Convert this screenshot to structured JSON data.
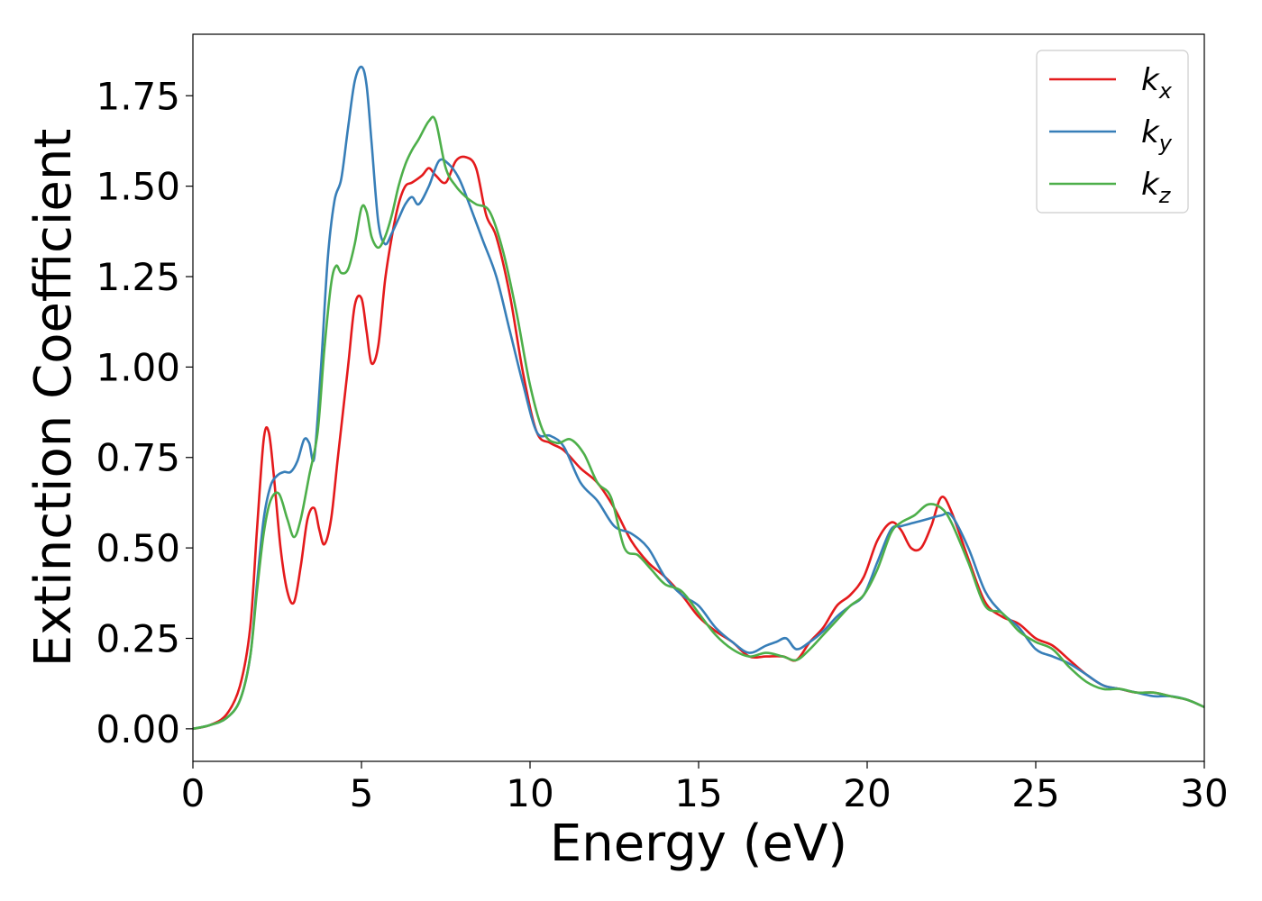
{
  "chart_data": {
    "type": "line",
    "xlabel": "Energy (eV)",
    "ylabel": "Extinction Coefficient",
    "xlim": [
      0,
      30
    ],
    "ylim": [
      -0.09,
      1.92
    ],
    "xticks": [
      0,
      5,
      10,
      15,
      20,
      25,
      30
    ],
    "xtick_labels": [
      "0",
      "5",
      "10",
      "15",
      "20",
      "25",
      "30"
    ],
    "yticks": [
      0.0,
      0.25,
      0.5,
      0.75,
      1.0,
      1.25,
      1.5,
      1.75
    ],
    "ytick_labels": [
      "0.00",
      "0.25",
      "0.50",
      "0.75",
      "1.00",
      "1.25",
      "1.50",
      "1.75"
    ],
    "grid": false,
    "legend_position": "top-right",
    "series": [
      {
        "name": "k_x",
        "label_main": "k",
        "label_sub": "x",
        "color": "#e41a1c",
        "x": [
          0,
          0.5,
          1.0,
          1.4,
          1.7,
          1.9,
          2.1,
          2.25,
          2.4,
          2.6,
          2.8,
          3.0,
          3.2,
          3.4,
          3.6,
          3.75,
          3.9,
          4.1,
          4.3,
          4.6,
          4.8,
          5.0,
          5.15,
          5.3,
          5.5,
          5.7,
          5.9,
          6.1,
          6.3,
          6.5,
          6.8,
          7.0,
          7.2,
          7.5,
          7.8,
          8.1,
          8.4,
          8.7,
          9.0,
          9.4,
          9.8,
          10.2,
          10.6,
          11.0,
          11.5,
          12.0,
          12.5,
          13.0,
          13.5,
          14.0,
          14.5,
          15.0,
          15.5,
          16.0,
          16.5,
          17.0,
          17.5,
          17.9,
          18.3,
          18.7,
          19.1,
          19.5,
          19.9,
          20.3,
          20.7,
          21.0,
          21.3,
          21.6,
          21.9,
          22.2,
          22.5,
          23.0,
          23.5,
          24.0,
          24.5,
          25.0,
          25.5,
          26.0,
          26.5,
          27.0,
          27.5,
          28.0,
          28.5,
          29.0,
          29.5,
          30.0
        ],
        "y": [
          0.0,
          0.01,
          0.04,
          0.12,
          0.28,
          0.55,
          0.8,
          0.82,
          0.7,
          0.5,
          0.38,
          0.35,
          0.45,
          0.58,
          0.61,
          0.55,
          0.51,
          0.58,
          0.75,
          1.0,
          1.17,
          1.19,
          1.1,
          1.01,
          1.06,
          1.24,
          1.36,
          1.45,
          1.5,
          1.51,
          1.53,
          1.55,
          1.53,
          1.51,
          1.57,
          1.58,
          1.55,
          1.42,
          1.36,
          1.2,
          0.98,
          0.82,
          0.79,
          0.77,
          0.72,
          0.68,
          0.61,
          0.52,
          0.46,
          0.42,
          0.37,
          0.31,
          0.27,
          0.24,
          0.2,
          0.2,
          0.2,
          0.19,
          0.24,
          0.28,
          0.34,
          0.37,
          0.42,
          0.52,
          0.57,
          0.55,
          0.5,
          0.5,
          0.56,
          0.64,
          0.6,
          0.47,
          0.35,
          0.31,
          0.29,
          0.25,
          0.23,
          0.19,
          0.15,
          0.12,
          0.11,
          0.1,
          0.1,
          0.09,
          0.08,
          0.06
        ]
      },
      {
        "name": "k_y",
        "label_main": "k",
        "label_sub": "y",
        "color": "#377eb8",
        "x": [
          0,
          0.5,
          1.0,
          1.4,
          1.7,
          1.9,
          2.1,
          2.3,
          2.5,
          2.7,
          2.9,
          3.1,
          3.3,
          3.45,
          3.6,
          3.8,
          4.0,
          4.2,
          4.4,
          4.6,
          4.8,
          5.0,
          5.15,
          5.3,
          5.5,
          5.7,
          5.9,
          6.1,
          6.3,
          6.5,
          6.7,
          7.0,
          7.3,
          7.6,
          7.9,
          8.2,
          8.6,
          9.0,
          9.4,
          9.8,
          10.2,
          10.6,
          11.0,
          11.5,
          12.0,
          12.5,
          13.0,
          13.5,
          14.0,
          14.5,
          15.0,
          15.5,
          16.0,
          16.5,
          17.0,
          17.3,
          17.6,
          17.9,
          18.3,
          18.7,
          19.1,
          19.5,
          19.9,
          20.3,
          20.7,
          21.0,
          21.4,
          21.8,
          22.2,
          22.5,
          23.0,
          23.5,
          24.0,
          24.5,
          25.0,
          25.5,
          26.0,
          26.5,
          27.0,
          27.5,
          28.0,
          28.5,
          29.0,
          29.5,
          30.0
        ],
        "y": [
          0.0,
          0.01,
          0.03,
          0.08,
          0.2,
          0.4,
          0.58,
          0.67,
          0.7,
          0.71,
          0.71,
          0.74,
          0.8,
          0.79,
          0.75,
          1.0,
          1.3,
          1.46,
          1.52,
          1.66,
          1.79,
          1.83,
          1.78,
          1.62,
          1.4,
          1.34,
          1.37,
          1.41,
          1.45,
          1.47,
          1.45,
          1.5,
          1.57,
          1.56,
          1.52,
          1.45,
          1.35,
          1.25,
          1.1,
          0.95,
          0.82,
          0.81,
          0.78,
          0.68,
          0.63,
          0.56,
          0.54,
          0.5,
          0.42,
          0.37,
          0.34,
          0.28,
          0.24,
          0.21,
          0.23,
          0.24,
          0.25,
          0.22,
          0.24,
          0.27,
          0.31,
          0.34,
          0.37,
          0.46,
          0.55,
          0.56,
          0.57,
          0.58,
          0.59,
          0.59,
          0.5,
          0.38,
          0.32,
          0.28,
          0.22,
          0.2,
          0.18,
          0.15,
          0.12,
          0.11,
          0.1,
          0.09,
          0.09,
          0.08,
          0.06
        ]
      },
      {
        "name": "k_z",
        "label_main": "k",
        "label_sub": "z",
        "color": "#4daf4a",
        "x": [
          0,
          0.5,
          1.0,
          1.4,
          1.7,
          1.9,
          2.1,
          2.3,
          2.55,
          2.8,
          3.0,
          3.2,
          3.45,
          3.7,
          3.9,
          4.1,
          4.25,
          4.4,
          4.6,
          4.8,
          5.0,
          5.15,
          5.3,
          5.5,
          5.7,
          5.9,
          6.1,
          6.3,
          6.5,
          6.7,
          7.0,
          7.2,
          7.5,
          7.8,
          8.1,
          8.4,
          8.8,
          9.2,
          9.6,
          10.0,
          10.4,
          10.8,
          11.2,
          11.6,
          12.0,
          12.4,
          12.8,
          13.2,
          13.6,
          14.0,
          14.5,
          15.0,
          15.5,
          16.0,
          16.5,
          17.0,
          17.5,
          17.9,
          18.3,
          18.7,
          19.1,
          19.5,
          19.9,
          20.3,
          20.7,
          21.0,
          21.4,
          21.8,
          22.2,
          22.5,
          23.0,
          23.5,
          24.0,
          24.5,
          25.0,
          25.5,
          26.0,
          26.5,
          27.0,
          27.5,
          28.0,
          28.5,
          29.0,
          29.5,
          30.0
        ],
        "y": [
          0.0,
          0.01,
          0.03,
          0.08,
          0.2,
          0.38,
          0.54,
          0.63,
          0.65,
          0.58,
          0.53,
          0.58,
          0.7,
          0.82,
          1.05,
          1.23,
          1.28,
          1.26,
          1.27,
          1.34,
          1.44,
          1.43,
          1.36,
          1.33,
          1.36,
          1.42,
          1.5,
          1.56,
          1.6,
          1.63,
          1.68,
          1.68,
          1.55,
          1.5,
          1.47,
          1.45,
          1.43,
          1.32,
          1.15,
          0.95,
          0.82,
          0.79,
          0.8,
          0.76,
          0.68,
          0.64,
          0.5,
          0.48,
          0.44,
          0.4,
          0.38,
          0.32,
          0.26,
          0.22,
          0.2,
          0.21,
          0.2,
          0.19,
          0.22,
          0.26,
          0.3,
          0.34,
          0.37,
          0.44,
          0.54,
          0.57,
          0.59,
          0.62,
          0.61,
          0.57,
          0.46,
          0.34,
          0.32,
          0.27,
          0.24,
          0.22,
          0.17,
          0.13,
          0.11,
          0.11,
          0.1,
          0.1,
          0.09,
          0.08,
          0.06
        ]
      }
    ]
  }
}
